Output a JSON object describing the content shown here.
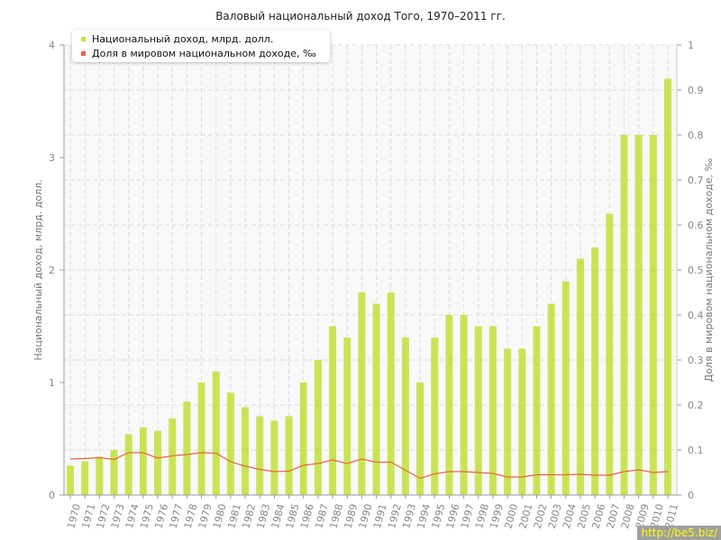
{
  "chart_data": {
    "type": "bar+line",
    "title": "Валовый национальный доход Того, 1970–2011 гг.",
    "ylabel": "Национальный доход, млрд. долл.",
    "y2label": "Доля в мировом национальном доходе, ‰",
    "ylim": [
      0,
      4
    ],
    "y2lim": [
      0,
      1
    ],
    "yticks": [
      "0",
      "1",
      "2",
      "3",
      "4"
    ],
    "y2ticks": [
      "0",
      "0.1",
      "0.2",
      "0.3",
      "0.4",
      "0.5",
      "0.6",
      "0.7",
      "0.8",
      "0.9",
      "1"
    ],
    "grid": true,
    "legend_position": "top-left",
    "categories": [
      "1970",
      "1971",
      "1972",
      "1973",
      "1974",
      "1975",
      "1976",
      "1977",
      "1978",
      "1979",
      "1980",
      "1981",
      "1982",
      "1983",
      "1984",
      "1985",
      "1986",
      "1987",
      "1988",
      "1989",
      "1990",
      "1991",
      "1992",
      "1993",
      "1994",
      "1995",
      "1996",
      "1997",
      "1998",
      "1999",
      "2000",
      "2001",
      "2002",
      "2003",
      "2004",
      "2005",
      "2006",
      "2007",
      "2008",
      "2009",
      "2010",
      "2011"
    ],
    "series": [
      {
        "name": "Национальный доход, млрд. долл.",
        "type": "bar",
        "axis": "left",
        "color": "#c2e03a",
        "values": [
          0.26,
          0.3,
          0.34,
          0.4,
          0.54,
          0.6,
          0.57,
          0.68,
          0.83,
          1.0,
          1.1,
          0.91,
          0.78,
          0.7,
          0.66,
          0.7,
          1.0,
          1.2,
          1.5,
          1.4,
          1.8,
          1.7,
          1.8,
          1.4,
          1.0,
          1.4,
          1.6,
          1.6,
          1.5,
          1.5,
          1.3,
          1.3,
          1.5,
          1.7,
          1.9,
          2.1,
          2.2,
          2.5,
          3.2,
          3.2,
          3.2,
          3.7
        ]
      },
      {
        "name": "Доля в мировом национальном доходе, ‰",
        "type": "line",
        "axis": "right",
        "color": "#e8673a",
        "values": [
          0.08,
          0.081,
          0.083,
          0.079,
          0.094,
          0.094,
          0.082,
          0.087,
          0.09,
          0.094,
          0.093,
          0.074,
          0.064,
          0.057,
          0.052,
          0.053,
          0.066,
          0.07,
          0.078,
          0.07,
          0.08,
          0.073,
          0.073,
          0.055,
          0.037,
          0.047,
          0.052,
          0.052,
          0.05,
          0.048,
          0.04,
          0.04,
          0.045,
          0.045,
          0.045,
          0.046,
          0.044,
          0.044,
          0.052,
          0.056,
          0.05,
          0.052
        ]
      }
    ]
  },
  "watermark": "http://be5.biz/"
}
